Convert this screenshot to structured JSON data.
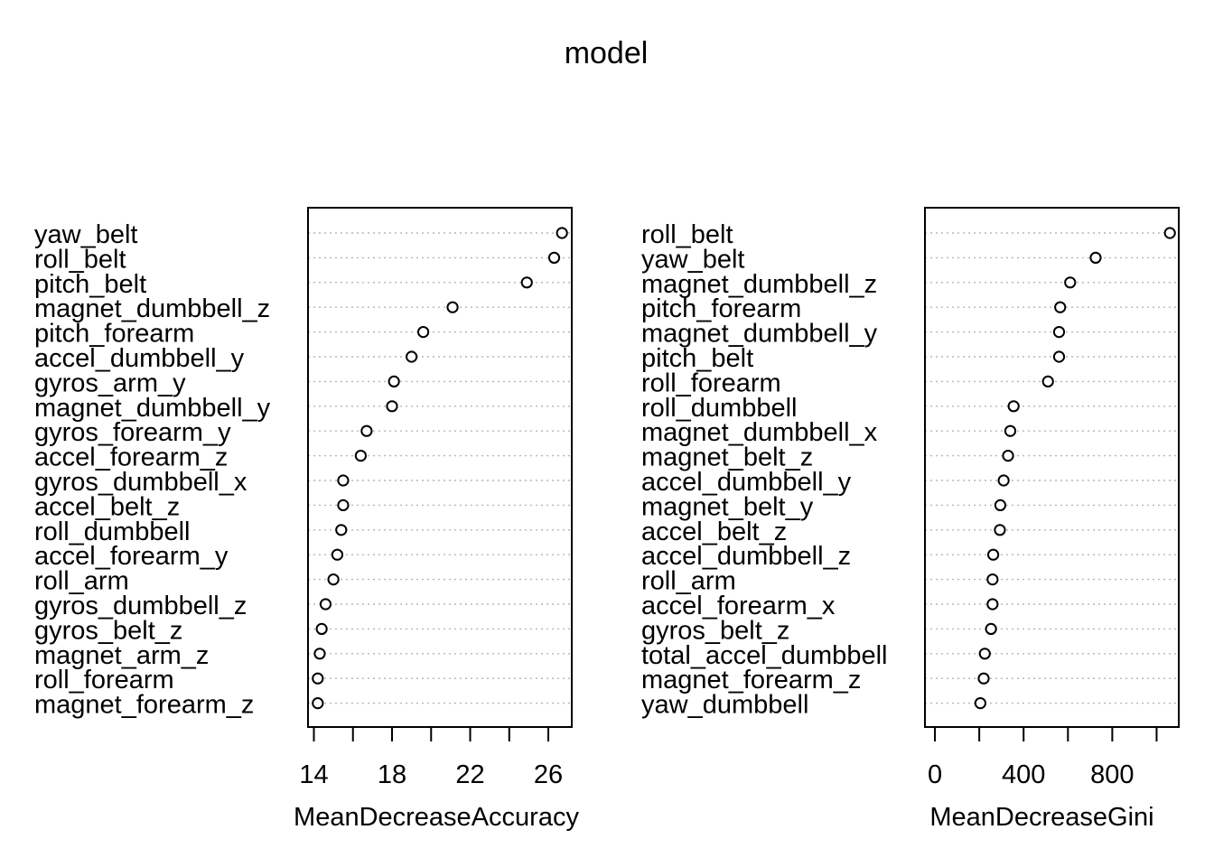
{
  "title": "model",
  "chart_data": [
    {
      "type": "scatter",
      "subtype": "dotchart",
      "xlabel": "MeanDecreaseAccuracy",
      "xlim": [
        13.7,
        27.2
      ],
      "xticks": [
        14,
        16,
        18,
        20,
        22,
        24,
        26
      ],
      "xtick_labels": [
        "14",
        "",
        "18",
        "",
        "22",
        "",
        "26"
      ],
      "grid": "dotted horizontal lines",
      "point_style": "open circle",
      "categories": [
        "yaw_belt",
        "roll_belt",
        "pitch_belt",
        "magnet_dumbbell_z",
        "pitch_forearm",
        "accel_dumbbell_y",
        "gyros_arm_y",
        "magnet_dumbbell_y",
        "gyros_forearm_y",
        "accel_forearm_z",
        "gyros_dumbbell_x",
        "accel_belt_z",
        "roll_dumbbell",
        "accel_forearm_y",
        "roll_arm",
        "gyros_dumbbell_z",
        "gyros_belt_z",
        "magnet_arm_z",
        "roll_forearm",
        "magnet_forearm_z"
      ],
      "values": [
        26.7,
        26.3,
        24.9,
        21.1,
        19.6,
        19.0,
        18.1,
        18.0,
        16.7,
        16.4,
        15.5,
        15.5,
        15.4,
        15.2,
        15.0,
        14.6,
        14.4,
        14.3,
        14.2,
        14.2
      ]
    },
    {
      "type": "scatter",
      "subtype": "dotchart",
      "xlabel": "MeanDecreaseGini",
      "xlim": [
        -45,
        1100
      ],
      "xticks": [
        0,
        200,
        400,
        600,
        800,
        1000
      ],
      "xtick_labels": [
        "0",
        "",
        "400",
        "",
        "800",
        ""
      ],
      "grid": "dotted horizontal lines",
      "point_style": "open circle",
      "categories": [
        "roll_belt",
        "yaw_belt",
        "magnet_dumbbell_z",
        "pitch_forearm",
        "magnet_dumbbell_y",
        "pitch_belt",
        "roll_forearm",
        "roll_dumbbell",
        "magnet_dumbbell_x",
        "magnet_belt_z",
        "accel_dumbbell_y",
        "magnet_belt_y",
        "accel_belt_z",
        "accel_dumbbell_z",
        "roll_arm",
        "accel_forearm_x",
        "gyros_belt_z",
        "total_accel_dumbbell",
        "magnet_forearm_z",
        "yaw_dumbbell"
      ],
      "values": [
        1060,
        725,
        610,
        565,
        560,
        560,
        510,
        355,
        340,
        330,
        310,
        295,
        293,
        263,
        260,
        260,
        253,
        225,
        220,
        205
      ]
    }
  ]
}
